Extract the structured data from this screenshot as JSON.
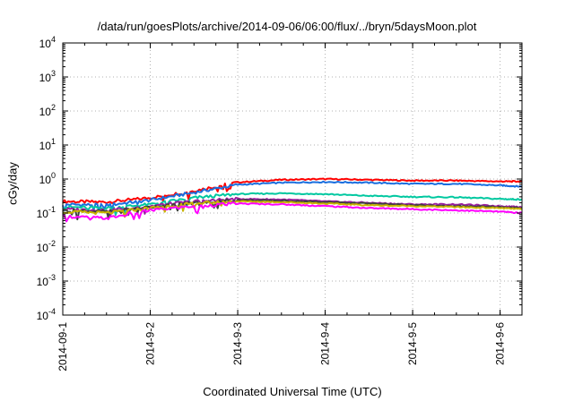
{
  "chart_data": {
    "type": "line",
    "title": "/data/run/goesPlots/archive/2014-09-06/06:00/flux/../bryn/5daysMoon.plot",
    "xlabel": "Coordinated Universal Time (UTC)",
    "ylabel": "cGy/day",
    "yscale": "log",
    "ylim": [
      0.0001,
      10000
    ],
    "xlim": [
      "2014-09-01",
      "2014-09-06T06:00"
    ],
    "grid": true,
    "legend": "none",
    "x_ticks": [
      "2014-09-01",
      "2014-09-02",
      "2014-09-03",
      "2014-09-04",
      "2014-09-05",
      "2014-09-06"
    ],
    "x_tick_labels": [
      "2014-09-1",
      "2014-9-2",
      "2014-9-3",
      "2014-9-4",
      "2014-9-5",
      "2014-9-6"
    ],
    "y_ticks": [
      {
        "value": 0.0001,
        "base": "10",
        "exp": "-4"
      },
      {
        "value": 0.001,
        "base": "10",
        "exp": "-3"
      },
      {
        "value": 0.01,
        "base": "10",
        "exp": "-2"
      },
      {
        "value": 0.1,
        "base": "10",
        "exp": "-1"
      },
      {
        "value": 1,
        "base": "10",
        "exp": "0"
      },
      {
        "value": 10,
        "base": "10",
        "exp": "1"
      },
      {
        "value": 100,
        "base": "10",
        "exp": "2"
      },
      {
        "value": 1000,
        "base": "10",
        "exp": "3"
      },
      {
        "value": 10000,
        "base": "10",
        "exp": "4"
      }
    ],
    "x": [
      "2014-09-01T00:00",
      "2014-09-01T12:00",
      "2014-09-02T00:00",
      "2014-09-02T12:00",
      "2014-09-03T00:00",
      "2014-09-03T12:00",
      "2014-09-04T00:00",
      "2014-09-04T12:00",
      "2014-09-05T00:00",
      "2014-09-05T12:00",
      "2014-09-06T00:00",
      "2014-09-06T06:00"
    ],
    "series": [
      {
        "color": "#ff0000",
        "values": [
          0.22,
          0.21,
          0.28,
          0.45,
          0.8,
          0.95,
          1.0,
          0.95,
          0.9,
          0.9,
          0.85,
          0.85
        ]
      },
      {
        "color": "#1a6fdf",
        "values": [
          0.18,
          0.17,
          0.24,
          0.4,
          0.68,
          0.78,
          0.82,
          0.78,
          0.72,
          0.72,
          0.65,
          0.6
        ]
      },
      {
        "color": "#00c8a0",
        "values": [
          0.15,
          0.14,
          0.18,
          0.28,
          0.36,
          0.38,
          0.36,
          0.32,
          0.3,
          0.29,
          0.26,
          0.25
        ]
      },
      {
        "color": "#9b1fa0",
        "values": [
          0.13,
          0.12,
          0.16,
          0.22,
          0.26,
          0.25,
          0.22,
          0.2,
          0.18,
          0.18,
          0.16,
          0.15
        ]
      },
      {
        "color": "#404040",
        "values": [
          0.12,
          0.11,
          0.15,
          0.2,
          0.24,
          0.23,
          0.21,
          0.19,
          0.17,
          0.16,
          0.15,
          0.14
        ]
      },
      {
        "color": "#c8b400",
        "values": [
          0.11,
          0.1,
          0.14,
          0.19,
          0.22,
          0.21,
          0.19,
          0.17,
          0.16,
          0.15,
          0.14,
          0.13
        ]
      },
      {
        "color": "#ff00ff",
        "values": [
          0.08,
          0.07,
          0.12,
          0.16,
          0.19,
          0.18,
          0.16,
          0.14,
          0.13,
          0.12,
          0.11,
          0.1
        ]
      }
    ]
  }
}
